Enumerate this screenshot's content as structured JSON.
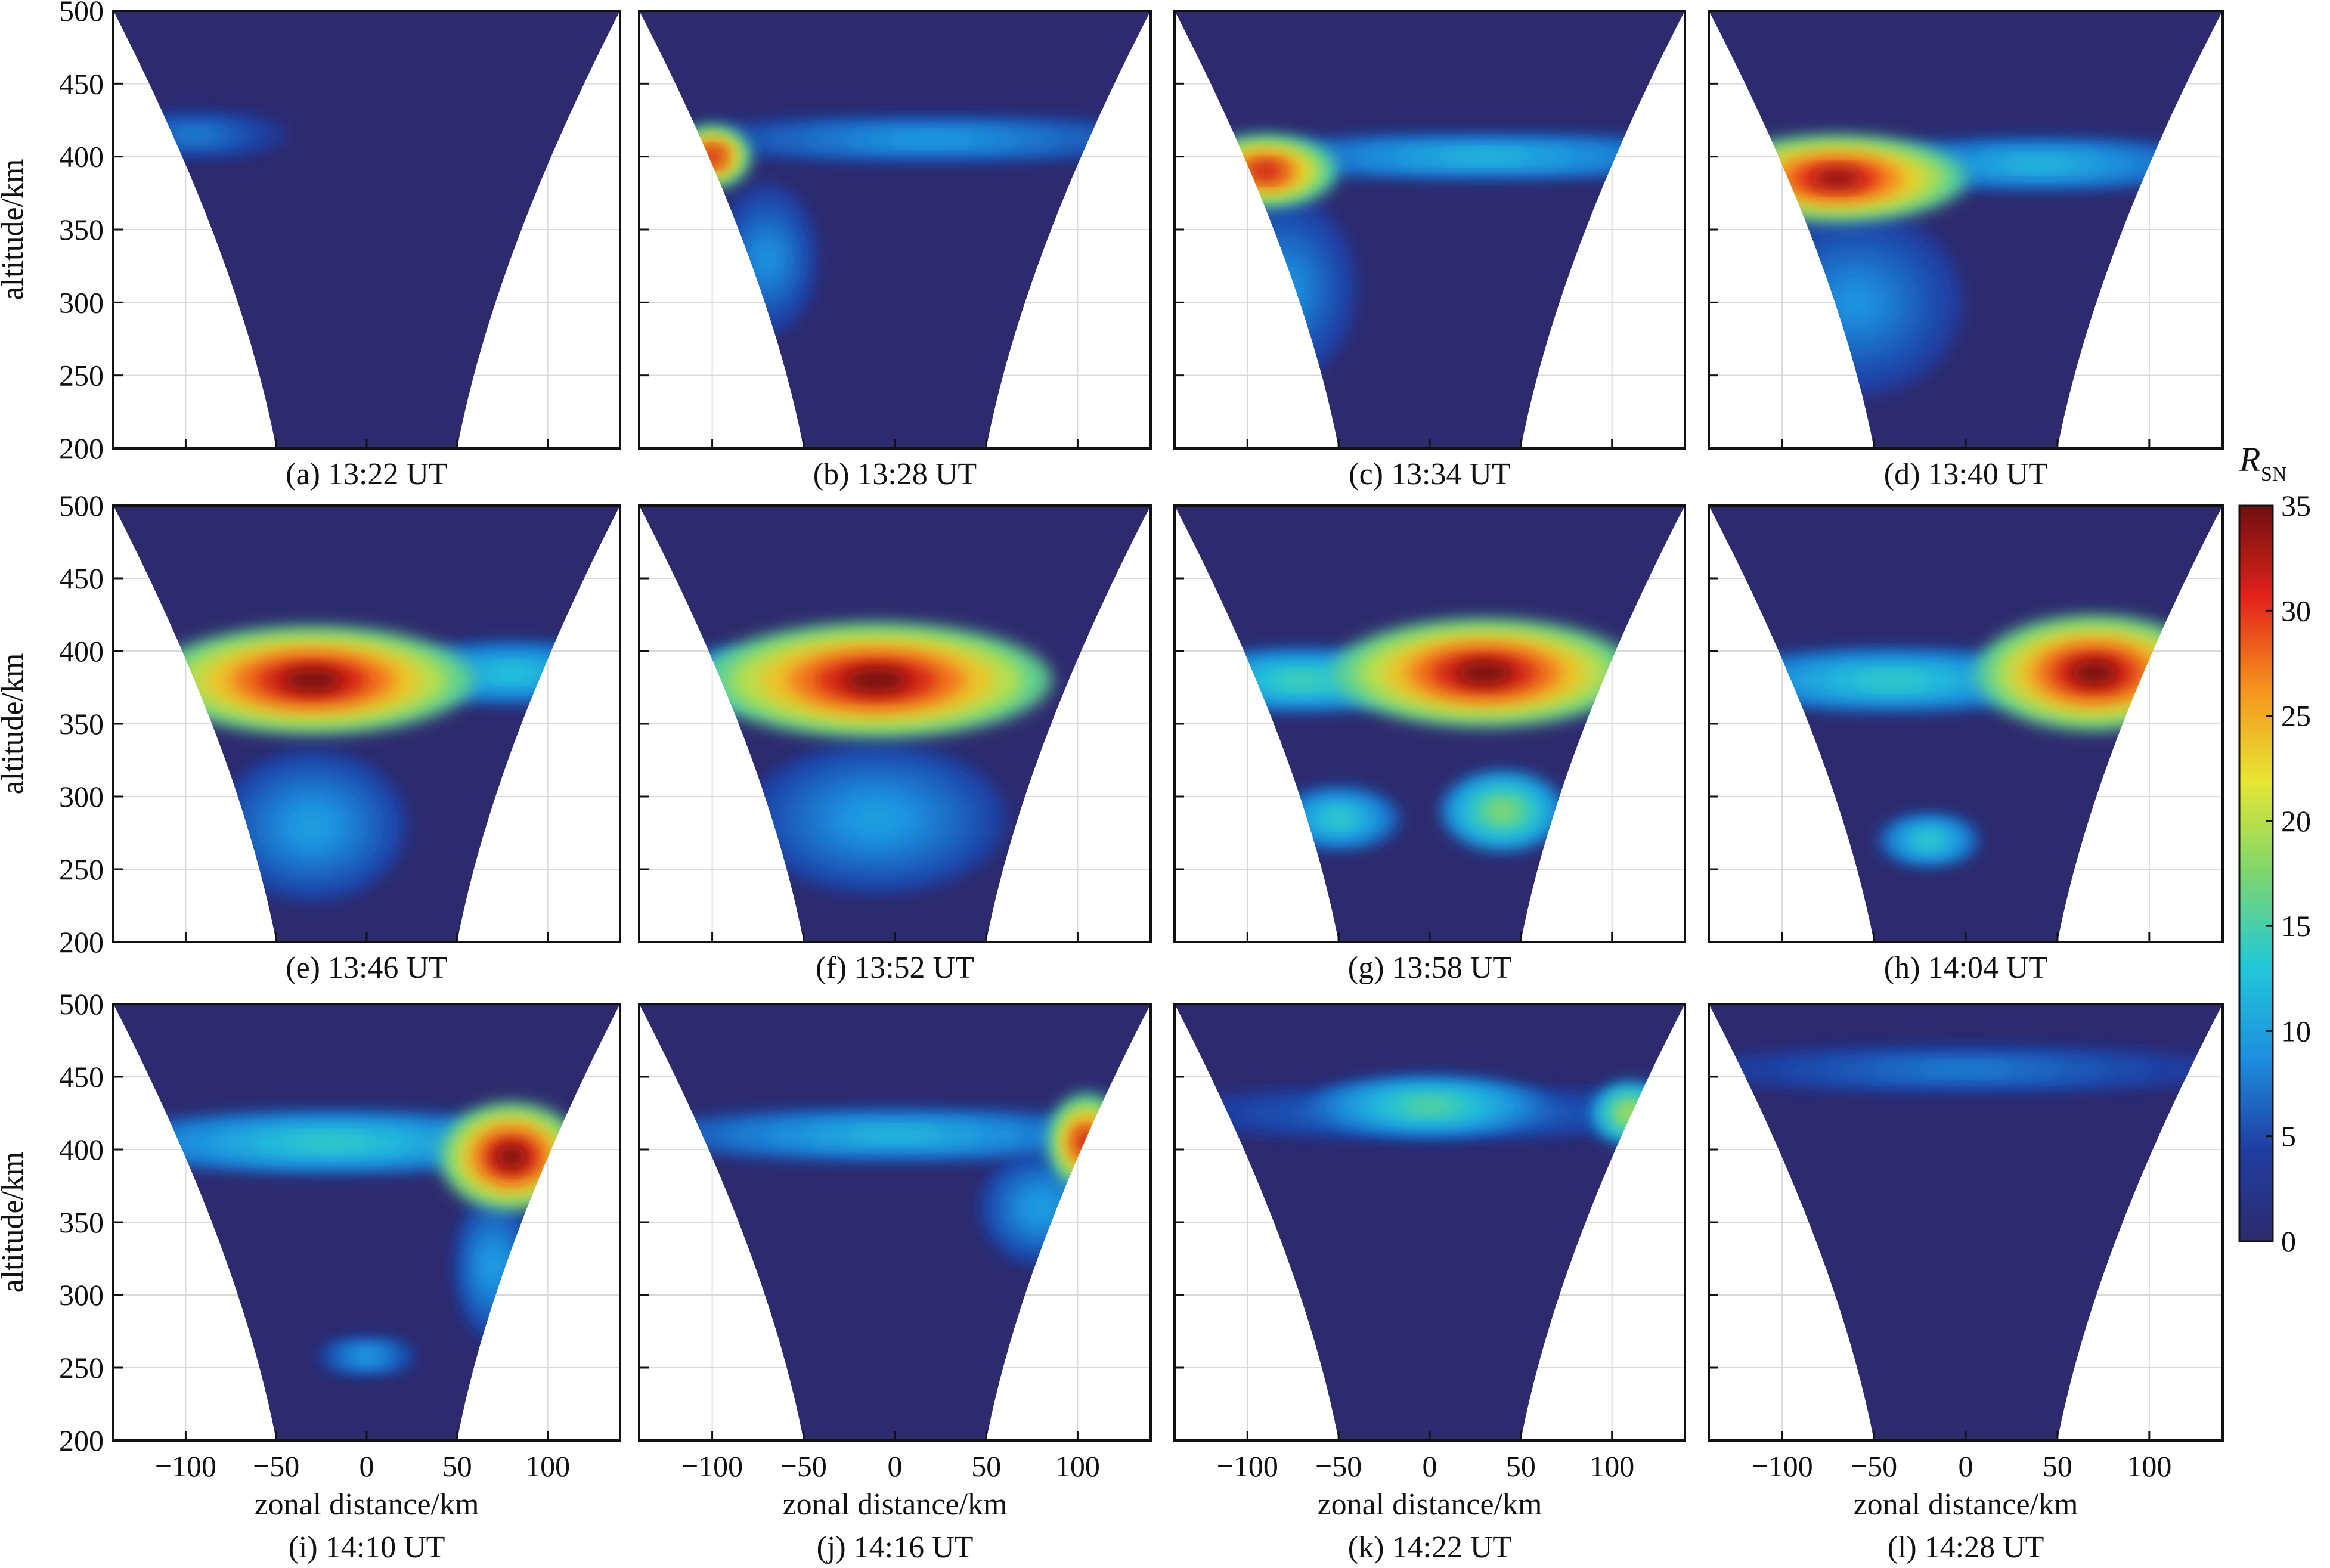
{
  "figure": {
    "xlabel": "zonal distance/km",
    "ylabel": "altitude/km",
    "colorbar_label": "R",
    "colorbar_sub": "SN"
  },
  "chart_data": {
    "type": "heatmap",
    "x_ticks": [
      -100,
      -50,
      0,
      50,
      100
    ],
    "y_ticks": [
      200,
      250,
      300,
      350,
      400,
      450,
      500
    ],
    "xlim": [
      -140,
      140
    ],
    "ylim": [
      200,
      500
    ],
    "colorbar": {
      "min": 0,
      "max": 35,
      "ticks": [
        0,
        5,
        10,
        15,
        20,
        25,
        30,
        35
      ]
    },
    "colormap": [
      "#2d2a6e",
      "#1f3ea3",
      "#1e8fe0",
      "#22c8d8",
      "#7cd66e",
      "#e6e633",
      "#f7931e",
      "#e2231a",
      "#6e1010"
    ],
    "panels": [
      {
        "caption": "(a) 13:22 UT",
        "blobs": [
          {
            "x": -95,
            "y": 415,
            "rx": 40,
            "ry": 10,
            "v": 8
          }
        ]
      },
      {
        "caption": "(b) 13:28 UT",
        "blobs": [
          {
            "x": -100,
            "y": 400,
            "rx": 15,
            "ry": 15,
            "v": 32
          },
          {
            "x": 20,
            "y": 412,
            "rx": 110,
            "ry": 10,
            "v": 10
          },
          {
            "x": -70,
            "y": 330,
            "rx": 20,
            "ry": 40,
            "v": 9
          }
        ]
      },
      {
        "caption": "(c) 13:34 UT",
        "blobs": [
          {
            "x": -90,
            "y": 390,
            "rx": 30,
            "ry": 18,
            "v": 32
          },
          {
            "x": 30,
            "y": 400,
            "rx": 110,
            "ry": 10,
            "v": 12
          },
          {
            "x": -80,
            "y": 310,
            "rx": 30,
            "ry": 50,
            "v": 9
          }
        ]
      },
      {
        "caption": "(d) 13:40 UT",
        "blobs": [
          {
            "x": -70,
            "y": 385,
            "rx": 55,
            "ry": 22,
            "v": 34
          },
          {
            "x": 40,
            "y": 395,
            "rx": 80,
            "ry": 12,
            "v": 12
          },
          {
            "x": -60,
            "y": 300,
            "rx": 45,
            "ry": 50,
            "v": 9
          }
        ]
      },
      {
        "caption": "(e) 13:46 UT",
        "blobs": [
          {
            "x": -30,
            "y": 380,
            "rx": 70,
            "ry": 28,
            "v": 35
          },
          {
            "x": 80,
            "y": 385,
            "rx": 50,
            "ry": 15,
            "v": 13
          },
          {
            "x": -30,
            "y": 280,
            "rx": 40,
            "ry": 40,
            "v": 10
          }
        ]
      },
      {
        "caption": "(f) 13:52 UT",
        "blobs": [
          {
            "x": -10,
            "y": 380,
            "rx": 75,
            "ry": 30,
            "v": 35
          },
          {
            "x": -90,
            "y": 380,
            "rx": 30,
            "ry": 15,
            "v": 13
          },
          {
            "x": -10,
            "y": 285,
            "rx": 55,
            "ry": 40,
            "v": 10
          }
        ]
      },
      {
        "caption": "(g) 13:58 UT",
        "blobs": [
          {
            "x": 30,
            "y": 385,
            "rx": 65,
            "ry": 28,
            "v": 35
          },
          {
            "x": -70,
            "y": 380,
            "rx": 55,
            "ry": 15,
            "v": 15
          },
          {
            "x": 40,
            "y": 290,
            "rx": 25,
            "ry": 20,
            "v": 18
          },
          {
            "x": -50,
            "y": 285,
            "rx": 25,
            "ry": 15,
            "v": 14
          }
        ]
      },
      {
        "caption": "(h) 14:04 UT",
        "blobs": [
          {
            "x": 70,
            "y": 385,
            "rx": 50,
            "ry": 30,
            "v": 35
          },
          {
            "x": -40,
            "y": 380,
            "rx": 80,
            "ry": 15,
            "v": 14
          },
          {
            "x": -20,
            "y": 270,
            "rx": 20,
            "ry": 12,
            "v": 14
          }
        ]
      },
      {
        "caption": "(i) 14:10 UT",
        "blobs": [
          {
            "x": 80,
            "y": 395,
            "rx": 30,
            "ry": 28,
            "v": 35
          },
          {
            "x": -20,
            "y": 405,
            "rx": 100,
            "ry": 15,
            "v": 14
          },
          {
            "x": 70,
            "y": 320,
            "rx": 15,
            "ry": 40,
            "v": 10
          },
          {
            "x": 0,
            "y": 258,
            "rx": 20,
            "ry": 8,
            "v": 10
          }
        ]
      },
      {
        "caption": "(j) 14:16 UT",
        "blobs": [
          {
            "x": 105,
            "y": 405,
            "rx": 15,
            "ry": 25,
            "v": 32
          },
          {
            "x": 0,
            "y": 410,
            "rx": 110,
            "ry": 12,
            "v": 12
          },
          {
            "x": 80,
            "y": 360,
            "rx": 25,
            "ry": 30,
            "v": 10
          }
        ]
      },
      {
        "caption": "(k) 14:22 UT",
        "blobs": [
          {
            "x": 0,
            "y": 430,
            "rx": 50,
            "ry": 14,
            "v": 16
          },
          {
            "x": 110,
            "y": 425,
            "rx": 15,
            "ry": 15,
            "v": 20
          },
          {
            "x": 0,
            "y": 425,
            "rx": 120,
            "ry": 12,
            "v": 8
          }
        ]
      },
      {
        "caption": "(l) 14:28 UT",
        "blobs": [
          {
            "x": 0,
            "y": 455,
            "rx": 120,
            "ry": 10,
            "v": 8
          }
        ]
      }
    ]
  }
}
